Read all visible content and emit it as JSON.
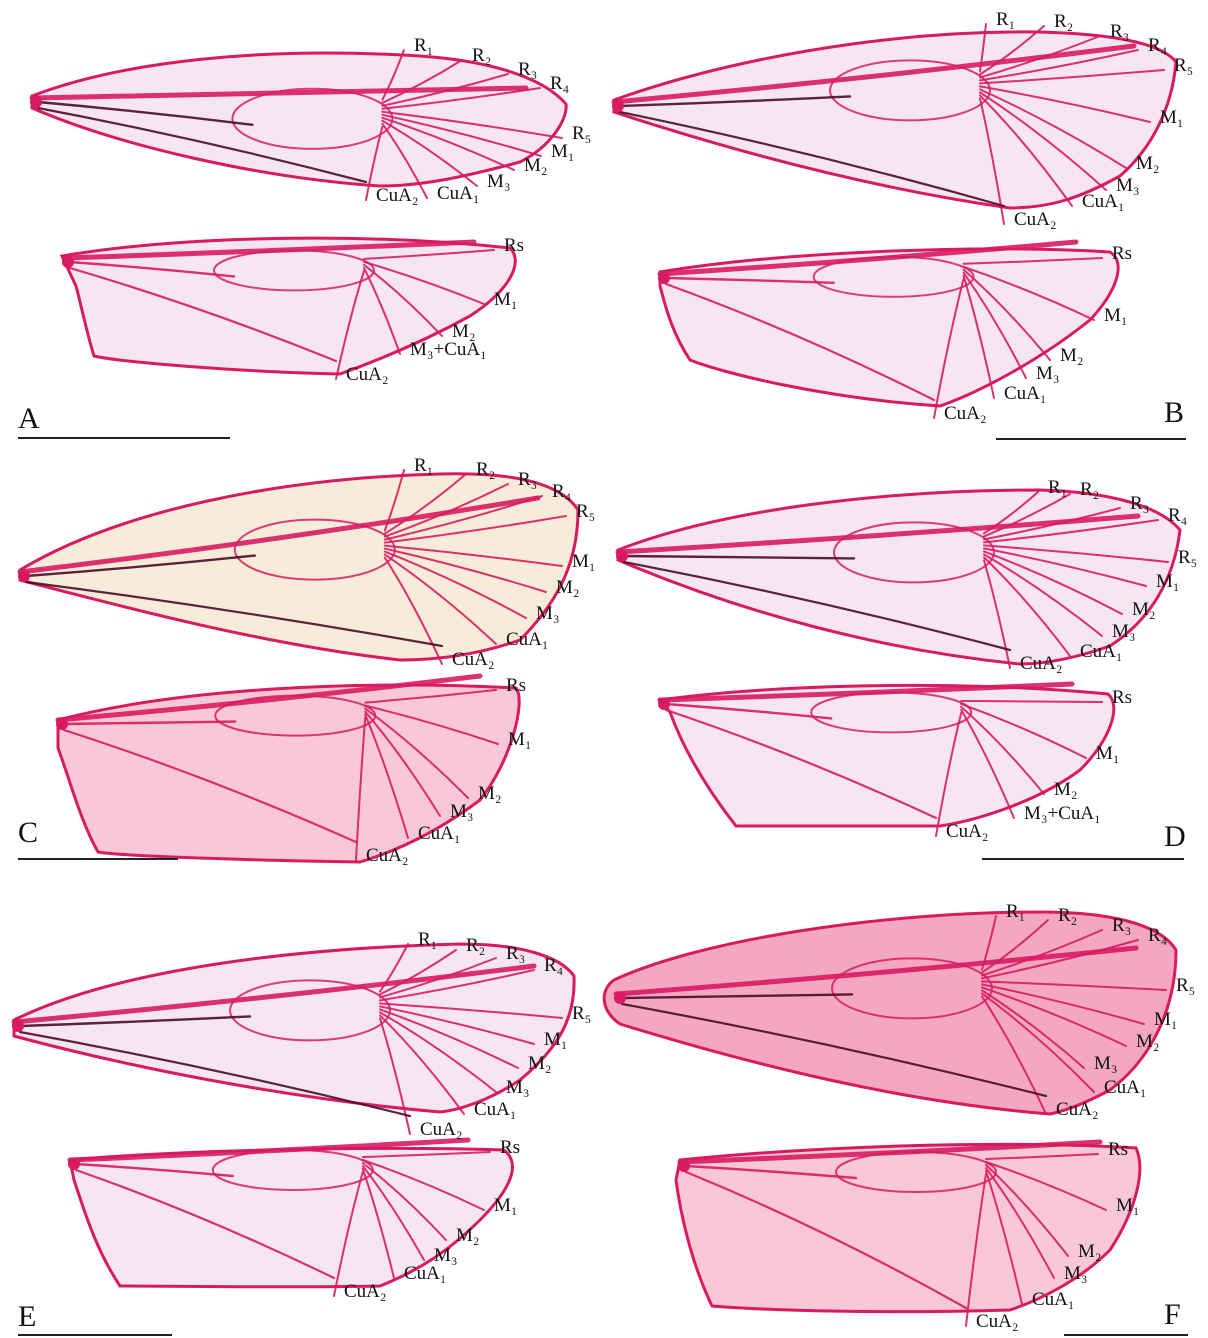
{
  "panels": [
    {
      "letter": "A",
      "forewing_labels": [
        "R1",
        "R2",
        "R3",
        "R4",
        "R5",
        "M1",
        "M2",
        "M3",
        "CuA1",
        "CuA2"
      ],
      "hindwing_labels": [
        "Rs",
        "M1",
        "M2",
        "M3+CuA1",
        "CuA2"
      ]
    },
    {
      "letter": "B",
      "forewing_labels": [
        "R1",
        "R2",
        "R3",
        "R4",
        "R5",
        "M1",
        "M2",
        "M3",
        "CuA1",
        "CuA2"
      ],
      "hindwing_labels": [
        "Rs",
        "M1",
        "M2",
        "M3",
        "CuA1",
        "CuA2"
      ]
    },
    {
      "letter": "C",
      "forewing_labels": [
        "R1",
        "R2",
        "R3",
        "R4",
        "R5",
        "M1",
        "M2",
        "M3",
        "CuA1",
        "CuA2"
      ],
      "hindwing_labels": [
        "Rs",
        "M1",
        "M2",
        "M3",
        "CuA1",
        "CuA2"
      ]
    },
    {
      "letter": "D",
      "forewing_labels": [
        "R1",
        "R2",
        "R3",
        "R4",
        "R5",
        "M1",
        "M2",
        "M3",
        "CuA1",
        "CuA2"
      ],
      "hindwing_labels": [
        "Rs",
        "M1",
        "M2",
        "M3+CuA1",
        "CuA2"
      ]
    },
    {
      "letter": "E",
      "forewing_labels": [
        "R1",
        "R2",
        "R3",
        "R4",
        "R5",
        "M1",
        "M2",
        "M3",
        "CuA1",
        "CuA2"
      ],
      "hindwing_labels": [
        "Rs",
        "M1",
        "M2",
        "M3",
        "CuA1",
        "CuA2"
      ]
    },
    {
      "letter": "F",
      "forewing_labels": [
        "R1",
        "R2",
        "R3",
        "R4",
        "R5",
        "M1",
        "M2",
        "M3",
        "CuA1",
        "CuA2"
      ],
      "hindwing_labels": [
        "Rs",
        "M1",
        "M2",
        "M3",
        "CuA1",
        "CuA2"
      ]
    }
  ],
  "colors": {
    "vein": "#d81b60",
    "vein_dark": "#4a0c2a",
    "membrane_light": "#f6e6f0",
    "membrane_cream": "#f7ecd9",
    "membrane_pink": "#f9c8d6",
    "membrane_rose": "#f4a7c0",
    "label_text": "#111111"
  }
}
